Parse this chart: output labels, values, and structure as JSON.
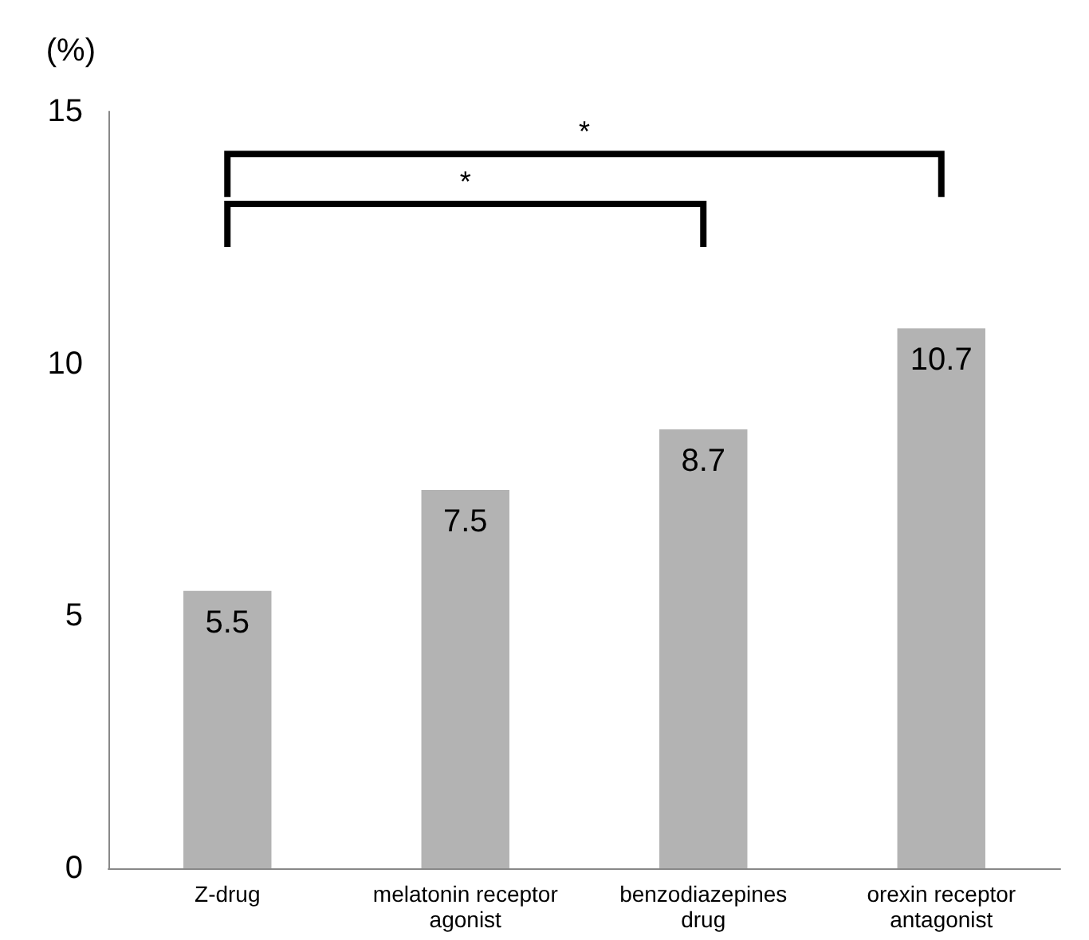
{
  "chart_data": {
    "type": "bar",
    "ylabel": "(%)",
    "categories": [
      "Z-drug",
      "melatonin receptor\nagonist",
      "benzodiazepines\ndrug",
      "orexin receptor\nantagonist"
    ],
    "values": [
      5.5,
      7.5,
      8.7,
      10.7
    ],
    "color": "#b3b3b3",
    "ylim": [
      0,
      15
    ],
    "yticks": [
      0,
      5,
      10,
      15
    ],
    "data_labels": true,
    "grid": false,
    "annotations": [
      "*",
      "*"
    ]
  }
}
